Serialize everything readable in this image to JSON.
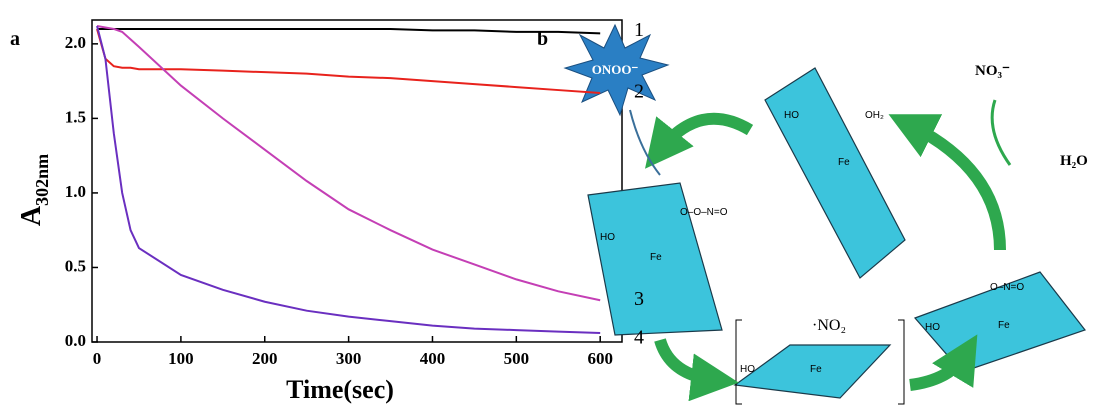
{
  "chart_data": {
    "type": "line",
    "panel": "a",
    "xlabel": "Time(sec)",
    "ylabel": "A",
    "ylabel_sub": "302nm",
    "x": [
      0,
      10,
      20,
      30,
      40,
      50,
      100,
      150,
      200,
      250,
      300,
      350,
      400,
      450,
      500,
      550,
      600
    ],
    "series": [
      {
        "name": "1",
        "color": "#000000",
        "values": [
          2.1,
          2.1,
          2.1,
          2.1,
          2.1,
          2.1,
          2.1,
          2.1,
          2.1,
          2.1,
          2.1,
          2.1,
          2.09,
          2.09,
          2.08,
          2.08,
          2.07
        ]
      },
      {
        "name": "2",
        "color": "#e8221c",
        "values": [
          2.1,
          1.9,
          1.85,
          1.84,
          1.84,
          1.83,
          1.83,
          1.82,
          1.81,
          1.8,
          1.78,
          1.77,
          1.75,
          1.73,
          1.71,
          1.69,
          1.67
        ]
      },
      {
        "name": "3",
        "color": "#c43fb5",
        "values": [
          2.12,
          2.11,
          2.1,
          2.08,
          2.03,
          1.98,
          1.72,
          1.5,
          1.29,
          1.08,
          0.89,
          0.75,
          0.62,
          0.52,
          0.42,
          0.34,
          0.28
        ]
      },
      {
        "name": "4",
        "color": "#6a2fc0",
        "values": [
          2.12,
          1.9,
          1.4,
          1.0,
          0.75,
          0.63,
          0.45,
          0.35,
          0.27,
          0.21,
          0.17,
          0.14,
          0.11,
          0.09,
          0.08,
          0.07,
          0.06
        ]
      }
    ],
    "xlim": [
      -6,
      626
    ],
    "ylim": [
      0,
      2.16
    ],
    "xticks": [
      0,
      100,
      200,
      300,
      400,
      500,
      600
    ],
    "yticks": [
      {
        "value": 0,
        "label": "0.0"
      },
      0.5,
      {
        "value": 1,
        "label": "1.0"
      },
      1.5,
      {
        "value": 2,
        "label": "2.0"
      }
    ]
  },
  "diagram": {
    "panel": "b",
    "labels": {
      "oxidant": "ONOO⁻",
      "nitrate": "NO₃⁻",
      "water": "H₂O",
      "radical": "·NO₂",
      "iron": "Fe",
      "hydroxyl": "HO",
      "aqua": "OH₂",
      "nitroso": "O–O–N=O",
      "nitro": "O–N=O"
    }
  }
}
